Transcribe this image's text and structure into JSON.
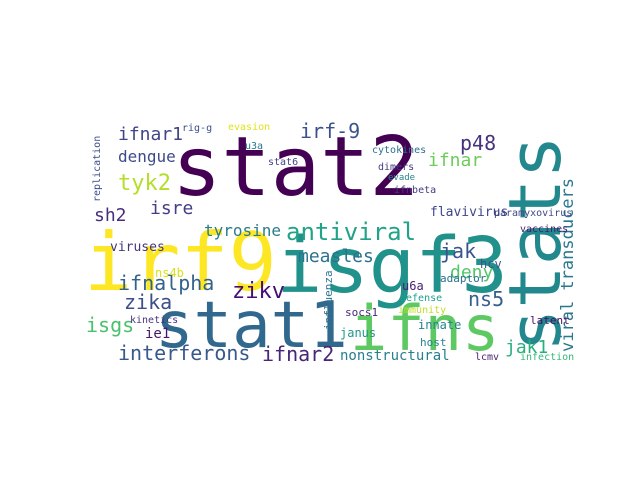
{
  "chart_data": {
    "type": "wordcloud",
    "words": [
      {
        "text": "stat2",
        "color": "#440154"
      },
      {
        "text": "irf9",
        "color": "#fde725"
      },
      {
        "text": "isgf3",
        "color": "#21918c"
      },
      {
        "text": "stat1",
        "color": "#31688e"
      },
      {
        "text": "ifns",
        "color": "#5ec962"
      },
      {
        "text": "stats",
        "color": "#23888e"
      },
      {
        "text": "viral transducers",
        "color": "#2a788e"
      },
      {
        "text": "antiviral",
        "color": "#20a386"
      },
      {
        "text": "irf-9",
        "color": "#3b528b"
      },
      {
        "text": "ifnar1",
        "color": "#414487"
      },
      {
        "text": "dengue",
        "color": "#3e4a89"
      },
      {
        "text": "tyk2",
        "color": "#b5de2b"
      },
      {
        "text": "sh2",
        "color": "#472d7b"
      },
      {
        "text": "isre",
        "color": "#433e85"
      },
      {
        "text": "measles",
        "color": "#2c728e"
      },
      {
        "text": "jak",
        "color": "#3a548c"
      },
      {
        "text": "deny",
        "color": "#52c569"
      },
      {
        "text": "ifnar",
        "color": "#6ccd5a"
      },
      {
        "text": "p48",
        "color": "#46327e"
      },
      {
        "text": "tyrosine",
        "color": "#287c8e"
      },
      {
        "text": "ifnalpha",
        "color": "#33638d"
      },
      {
        "text": "zikv",
        "color": "#440f76"
      },
      {
        "text": "zika",
        "color": "#3d4e8a"
      },
      {
        "text": "isgs",
        "color": "#4ac16d"
      },
      {
        "text": "ns5",
        "color": "#355f8d"
      },
      {
        "text": "jak1",
        "color": "#29af7f"
      },
      {
        "text": "interferons",
        "color": "#38598c"
      },
      {
        "text": "ifnar2",
        "color": "#482576"
      },
      {
        "text": "nonstructural",
        "color": "#277f8e"
      },
      {
        "text": "ie1",
        "color": "#481769"
      },
      {
        "text": "flavivirus",
        "color": "#3f4788"
      },
      {
        "text": "paramyxovirus",
        "color": "#404688"
      },
      {
        "text": "viruses",
        "color": "#453581"
      },
      {
        "text": "kinetics",
        "color": "#46337e"
      },
      {
        "text": "ns4b",
        "color": "#d8e219"
      },
      {
        "text": "janus",
        "color": "#1f988b"
      },
      {
        "text": "socs1",
        "color": "#482878"
      },
      {
        "text": "adaptor",
        "color": "#2d708e"
      },
      {
        "text": "u6a",
        "color": "#481f70"
      },
      {
        "text": "innate",
        "color": "#26828e"
      },
      {
        "text": "host",
        "color": "#25848e"
      },
      {
        "text": "hcv",
        "color": "#3b528b"
      },
      {
        "text": "latent",
        "color": "#471063"
      },
      {
        "text": "infection",
        "color": "#35b779"
      },
      {
        "text": "lcmv",
        "color": "#482475"
      },
      {
        "text": "vaccines",
        "color": "#481a6c"
      },
      {
        "text": "evasion",
        "color": "#dde318"
      },
      {
        "text": "u3a",
        "color": "#2a768e"
      },
      {
        "text": "stat6",
        "color": "#404387"
      },
      {
        "text": "rig-g",
        "color": "#3c4f8a"
      },
      {
        "text": "cytokines",
        "color": "#2e6e8e"
      },
      {
        "text": "dimers",
        "color": "#443a83"
      },
      {
        "text": "evade",
        "color": "#24868e"
      },
      {
        "text": "ifnbeta",
        "color": "#443983"
      },
      {
        "text": "defense",
        "color": "#1fa088"
      },
      {
        "text": "immunity",
        "color": "#c0df25"
      },
      {
        "text": "influenza",
        "color": "#2c738e"
      },
      {
        "text": "replication",
        "color": "#3d4d8a"
      }
    ]
  }
}
